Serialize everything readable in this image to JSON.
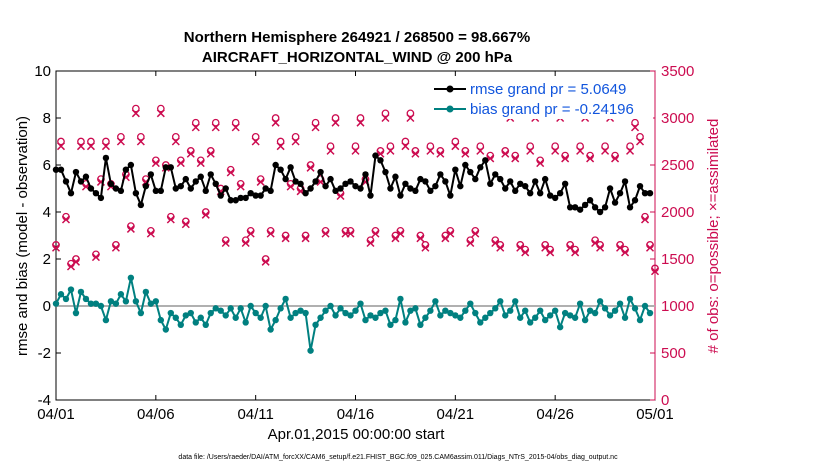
{
  "chart_data": {
    "type": "line",
    "title": "Northern Hemisphere 264921 / 268500 = 98.667%",
    "subtitle": "AIRCRAFT_HORIZONTAL_WIND @ 200 hPa",
    "xlabel": "Apr.01,2015 00:00:00 start",
    "ylabel_left": "rmse and bias (model - observation)",
    "ylabel_right": "# of obs: o=possible; ×=assimilated",
    "xlim": [
      0,
      30
    ],
    "ylim_left": [
      -4,
      10
    ],
    "ylim_right": [
      0,
      3500
    ],
    "x_ticks": [
      0,
      5,
      10,
      15,
      20,
      25,
      30
    ],
    "x_tick_labels": [
      "04/01",
      "04/06",
      "04/11",
      "04/16",
      "04/21",
      "04/26",
      "05/01"
    ],
    "y_ticks_left": [
      -4,
      -2,
      0,
      2,
      4,
      6,
      8,
      10
    ],
    "y_tick_labels_left": [
      "-4",
      "-2",
      "0",
      "2",
      "4",
      "6",
      "8",
      "10"
    ],
    "y_ticks_right": [
      0,
      500,
      1000,
      1500,
      2000,
      2500,
      3000,
      3500
    ],
    "y_tick_labels_right": [
      "0",
      "500",
      "1000",
      "1500",
      "2000",
      "2500",
      "3000",
      "3500"
    ],
    "legend": [
      {
        "label": "rmse grand pr = 5.0649",
        "color": "#000000",
        "marker": "filled-circle"
      },
      {
        "label": "bias grand pr = -0.24196",
        "color": "#008080",
        "marker": "filled-circle"
      }
    ],
    "legend_position": "top-right",
    "reference_line": {
      "y": 0,
      "color": "#b0b0b0"
    },
    "series": [
      {
        "name": "rmse",
        "axis": "left",
        "color": "#000000",
        "x": [
          0.0,
          0.25,
          0.5,
          0.75,
          1.0,
          1.25,
          1.5,
          1.75,
          2.0,
          2.25,
          2.5,
          2.75,
          3.0,
          3.25,
          3.5,
          3.75,
          4.0,
          4.25,
          4.5,
          4.75,
          5.0,
          5.25,
          5.5,
          5.75,
          6.0,
          6.25,
          6.5,
          6.75,
          7.0,
          7.25,
          7.5,
          7.75,
          8.0,
          8.25,
          8.5,
          8.75,
          9.0,
          9.25,
          9.5,
          9.75,
          10.0,
          10.25,
          10.5,
          10.75,
          11.0,
          11.25,
          11.5,
          11.75,
          12.0,
          12.25,
          12.5,
          12.75,
          13.0,
          13.25,
          13.5,
          13.75,
          14.0,
          14.25,
          14.5,
          14.75,
          15.0,
          15.25,
          15.5,
          15.75,
          16.0,
          16.25,
          16.5,
          16.75,
          17.0,
          17.25,
          17.5,
          17.75,
          18.0,
          18.25,
          18.5,
          18.75,
          19.0,
          19.25,
          19.5,
          19.75,
          20.0,
          20.25,
          20.5,
          20.75,
          21.0,
          21.25,
          21.5,
          21.75,
          22.0,
          22.25,
          22.5,
          22.75,
          23.0,
          23.25,
          23.5,
          23.75,
          24.0,
          24.25,
          24.5,
          24.75,
          25.0,
          25.25,
          25.5,
          25.75,
          26.0,
          26.25,
          26.5,
          26.75,
          27.0,
          27.25,
          27.5,
          27.75,
          28.0,
          28.25,
          28.5,
          28.75,
          29.0,
          29.25,
          29.5,
          29.75
        ],
        "values": [
          5.8,
          5.8,
          5.3,
          4.8,
          5.7,
          5.3,
          5.5,
          5.0,
          4.8,
          4.6,
          6.3,
          5.2,
          5.0,
          4.9,
          5.8,
          6.0,
          4.8,
          4.3,
          5.1,
          5.6,
          4.9,
          4.9,
          5.9,
          5.9,
          5.0,
          5.1,
          5.4,
          5.0,
          5.3,
          5.5,
          4.9,
          5.6,
          5.2,
          4.7,
          5.0,
          4.5,
          4.5,
          4.6,
          4.6,
          4.8,
          4.7,
          4.7,
          5.0,
          4.9,
          6.0,
          5.8,
          5.4,
          5.9,
          5.3,
          5.2,
          4.8,
          5.0,
          5.3,
          5.7,
          5.1,
          5.4,
          4.9,
          5.0,
          5.2,
          5.3,
          5.1,
          5.0,
          5.6,
          4.7,
          6.4,
          6.2,
          5.7,
          5.0,
          5.5,
          4.7,
          5.2,
          5.0,
          4.9,
          5.4,
          5.3,
          4.9,
          5.1,
          5.6,
          5.3,
          4.7,
          5.8,
          5.1,
          6.0,
          5.7,
          5.4,
          5.9,
          6.2,
          5.2,
          5.6,
          5.4,
          5.0,
          5.3,
          4.9,
          5.2,
          5.1,
          4.8,
          5.3,
          4.8,
          5.4,
          4.7,
          4.6,
          4.8,
          5.2,
          4.2,
          4.2,
          4.1,
          4.3,
          4.5,
          4.2,
          4.0,
          4.2,
          5.0,
          4.4,
          4.8,
          5.3,
          4.2,
          4.5,
          5.1,
          4.8,
          4.8
        ]
      },
      {
        "name": "bias",
        "axis": "left",
        "color": "#008080",
        "x": [
          0.0,
          0.25,
          0.5,
          0.75,
          1.0,
          1.25,
          1.5,
          1.75,
          2.0,
          2.25,
          2.5,
          2.75,
          3.0,
          3.25,
          3.5,
          3.75,
          4.0,
          4.25,
          4.5,
          4.75,
          5.0,
          5.25,
          5.5,
          5.75,
          6.0,
          6.25,
          6.5,
          6.75,
          7.0,
          7.25,
          7.5,
          7.75,
          8.0,
          8.25,
          8.5,
          8.75,
          9.0,
          9.25,
          9.5,
          9.75,
          10.0,
          10.25,
          10.5,
          10.75,
          11.0,
          11.25,
          11.5,
          11.75,
          12.0,
          12.25,
          12.5,
          12.75,
          13.0,
          13.25,
          13.5,
          13.75,
          14.0,
          14.25,
          14.5,
          14.75,
          15.0,
          15.25,
          15.5,
          15.75,
          16.0,
          16.25,
          16.5,
          16.75,
          17.0,
          17.25,
          17.5,
          17.75,
          18.0,
          18.25,
          18.5,
          18.75,
          19.0,
          19.25,
          19.5,
          19.75,
          20.0,
          20.25,
          20.5,
          20.75,
          21.0,
          21.25,
          21.5,
          21.75,
          22.0,
          22.25,
          22.5,
          22.75,
          23.0,
          23.25,
          23.5,
          23.75,
          24.0,
          24.25,
          24.5,
          24.75,
          25.0,
          25.25,
          25.5,
          25.75,
          26.0,
          26.25,
          26.5,
          26.75,
          27.0,
          27.25,
          27.5,
          27.75,
          28.0,
          28.25,
          28.5,
          28.75,
          29.0,
          29.25,
          29.5,
          29.75
        ],
        "values": [
          0.1,
          0.5,
          0.3,
          0.7,
          -0.3,
          0.6,
          0.3,
          0.1,
          0.1,
          0.0,
          -0.6,
          0.2,
          0.1,
          0.5,
          0.2,
          1.2,
          0.2,
          -0.3,
          0.6,
          0.1,
          0.2,
          -0.6,
          -1.0,
          -0.3,
          -0.5,
          -0.8,
          -0.4,
          -0.3,
          -0.7,
          -0.5,
          -0.8,
          -0.3,
          -0.1,
          -0.2,
          -0.4,
          -0.1,
          -0.5,
          -0.1,
          -0.7,
          0.0,
          -0.3,
          -0.5,
          0.0,
          -1.0,
          -0.6,
          -0.1,
          0.3,
          -0.5,
          -0.3,
          -0.2,
          -0.3,
          -1.9,
          -0.8,
          -0.5,
          -0.2,
          0.0,
          -0.4,
          -0.1,
          -0.3,
          -0.4,
          -0.2,
          0.1,
          -0.6,
          -0.4,
          -0.5,
          -0.3,
          -0.2,
          -0.8,
          -0.6,
          0.3,
          -0.7,
          -0.2,
          -0.1,
          -0.8,
          -0.5,
          -0.2,
          0.2,
          -0.4,
          -0.2,
          -0.3,
          -0.4,
          -0.5,
          -0.2,
          0.1,
          -0.3,
          -0.7,
          -0.5,
          -0.3,
          -0.1,
          0.2,
          -0.4,
          -0.2,
          0.2,
          -0.5,
          -0.2,
          -0.7,
          -0.5,
          -0.2,
          -0.6,
          -0.4,
          -0.2,
          -0.9,
          -0.3,
          -0.4,
          -0.5,
          0.1,
          -0.6,
          -0.2,
          -0.3,
          0.2,
          -0.1,
          -0.4,
          -0.2,
          0.1,
          -0.5,
          0.3,
          -0.1,
          -0.6,
          0.0,
          -0.3
        ]
      },
      {
        "name": "obs possible",
        "axis": "right",
        "color": "#cc0c50",
        "marker": "open-circle",
        "x": [
          0.0,
          0.25,
          0.5,
          0.75,
          1.0,
          1.25,
          1.5,
          1.75,
          2.0,
          2.25,
          2.5,
          2.75,
          3.0,
          3.25,
          3.5,
          3.75,
          4.0,
          4.25,
          4.5,
          4.75,
          5.0,
          5.25,
          5.5,
          5.75,
          6.0,
          6.25,
          6.5,
          6.75,
          7.0,
          7.25,
          7.5,
          7.75,
          8.0,
          8.25,
          8.5,
          8.75,
          9.0,
          9.25,
          9.5,
          9.75,
          10.0,
          10.25,
          10.5,
          10.75,
          11.0,
          11.25,
          11.5,
          11.75,
          12.0,
          12.25,
          12.5,
          12.75,
          13.0,
          13.25,
          13.5,
          13.75,
          14.0,
          14.25,
          14.5,
          14.75,
          15.0,
          15.25,
          15.5,
          15.75,
          16.0,
          16.25,
          16.5,
          16.75,
          17.0,
          17.25,
          17.5,
          17.75,
          18.0,
          18.25,
          18.5,
          18.75,
          19.0,
          19.25,
          19.5,
          19.75,
          20.0,
          20.25,
          20.5,
          20.75,
          21.0,
          21.25,
          21.5,
          21.75,
          22.0,
          22.25,
          22.5,
          22.75,
          23.0,
          23.25,
          23.5,
          23.75,
          24.0,
          24.25,
          24.5,
          24.75,
          25.0,
          25.25,
          25.5,
          25.75,
          26.0,
          26.25,
          26.5,
          26.75,
          27.0,
          27.25,
          27.5,
          27.75,
          28.0,
          28.25,
          28.5,
          28.75,
          29.0,
          29.25,
          29.5,
          29.75,
          30.0
        ],
        "values": [
          1650,
          2750,
          1950,
          1450,
          1500,
          2750,
          2300,
          2750,
          1550,
          2350,
          2750,
          2300,
          1650,
          2800,
          2400,
          1850,
          3100,
          2800,
          2350,
          1800,
          2550,
          3100,
          2500,
          1950,
          2800,
          2550,
          1900,
          2650,
          2950,
          2550,
          2000,
          2650,
          2950,
          2250,
          1700,
          2450,
          2950,
          2300,
          1700,
          1800,
          2800,
          2350,
          1500,
          1800,
          3000,
          2750,
          1750,
          2300,
          2800,
          2250,
          1750,
          2500,
          2950,
          2350,
          1800,
          2700,
          3000,
          2200,
          1800,
          1800,
          2700,
          3000,
          2350,
          1700,
          1800,
          2650,
          3050,
          2700,
          1750,
          1800,
          2750,
          3050,
          2650,
          1750,
          1650,
          2700,
          3100,
          2650,
          1750,
          1800,
          2750,
          3100,
          2650,
          1700,
          1800,
          2700,
          3100,
          2600,
          1700,
          1650,
          2650,
          3050,
          2600,
          1650,
          1600,
          2700,
          3050,
          2550,
          1650,
          1600,
          2700,
          3050,
          2600,
          1650,
          1600,
          2700,
          3050,
          2600,
          1700,
          1650,
          2700,
          3050,
          2600,
          1650,
          1600,
          2700,
          2950,
          2800,
          1950,
          1650,
          1400
        ]
      },
      {
        "name": "obs assimilated",
        "axis": "right",
        "color": "#cc0c50",
        "marker": "cross",
        "x": [
          0.0,
          0.25,
          0.5,
          0.75,
          1.0,
          1.25,
          1.5,
          1.75,
          2.0,
          2.25,
          2.5,
          2.75,
          3.0,
          3.25,
          3.5,
          3.75,
          4.0,
          4.25,
          4.5,
          4.75,
          5.0,
          5.25,
          5.5,
          5.75,
          6.0,
          6.25,
          6.5,
          6.75,
          7.0,
          7.25,
          7.5,
          7.75,
          8.0,
          8.25,
          8.5,
          8.75,
          9.0,
          9.25,
          9.5,
          9.75,
          10.0,
          10.25,
          10.5,
          10.75,
          11.0,
          11.25,
          11.5,
          11.75,
          12.0,
          12.25,
          12.5,
          12.75,
          13.0,
          13.25,
          13.5,
          13.75,
          14.0,
          14.25,
          14.5,
          14.75,
          15.0,
          15.25,
          15.5,
          15.75,
          16.0,
          16.25,
          16.5,
          16.75,
          17.0,
          17.25,
          17.5,
          17.75,
          18.0,
          18.25,
          18.5,
          18.75,
          19.0,
          19.25,
          19.5,
          19.75,
          20.0,
          20.25,
          20.5,
          20.75,
          21.0,
          21.25,
          21.5,
          21.75,
          22.0,
          22.25,
          22.5,
          22.75,
          23.0,
          23.25,
          23.5,
          23.75,
          24.0,
          24.25,
          24.5,
          24.75,
          25.0,
          25.25,
          25.5,
          25.75,
          26.0,
          26.25,
          26.5,
          26.75,
          27.0,
          27.25,
          27.5,
          27.75,
          28.0,
          28.25,
          28.5,
          28.75,
          29.0,
          29.25,
          29.5,
          29.75,
          30.0
        ],
        "values": [
          1620,
          2700,
          1920,
          1420,
          1470,
          2700,
          2270,
          2700,
          1520,
          2320,
          2700,
          2270,
          1620,
          2750,
          2370,
          1820,
          3050,
          2750,
          2320,
          1770,
          2520,
          3050,
          2470,
          1920,
          2750,
          2520,
          1870,
          2620,
          2900,
          2520,
          1970,
          2620,
          2900,
          2220,
          1670,
          2420,
          2900,
          2270,
          1670,
          1770,
          2750,
          2320,
          1470,
          1770,
          2950,
          2700,
          1720,
          2270,
          2750,
          2220,
          1720,
          2470,
          2900,
          2320,
          1770,
          2650,
          2950,
          2170,
          1770,
          1770,
          2650,
          2950,
          2320,
          1670,
          1770,
          2620,
          3000,
          2650,
          1720,
          1770,
          2700,
          3000,
          2620,
          1720,
          1620,
          2650,
          3050,
          2620,
          1720,
          1770,
          2700,
          3050,
          2620,
          1670,
          1770,
          2650,
          3050,
          2570,
          1670,
          1620,
          2620,
          3000,
          2570,
          1620,
          1570,
          2650,
          3000,
          2520,
          1620,
          1570,
          2650,
          3000,
          2570,
          1620,
          1570,
          2650,
          3000,
          2570,
          1670,
          1620,
          2650,
          3000,
          2570,
          1620,
          1570,
          2650,
          2900,
          2750,
          1920,
          1620,
          1370
        ]
      }
    ],
    "footnote": "data file: /Users/raeder/DAI/ATM_forcXX/CAM6_setup/f.e21.FHIST_BGC.f09_025.CAM6assim.011/Diags_NTrS_2015-04/obs_diag_output.nc"
  }
}
